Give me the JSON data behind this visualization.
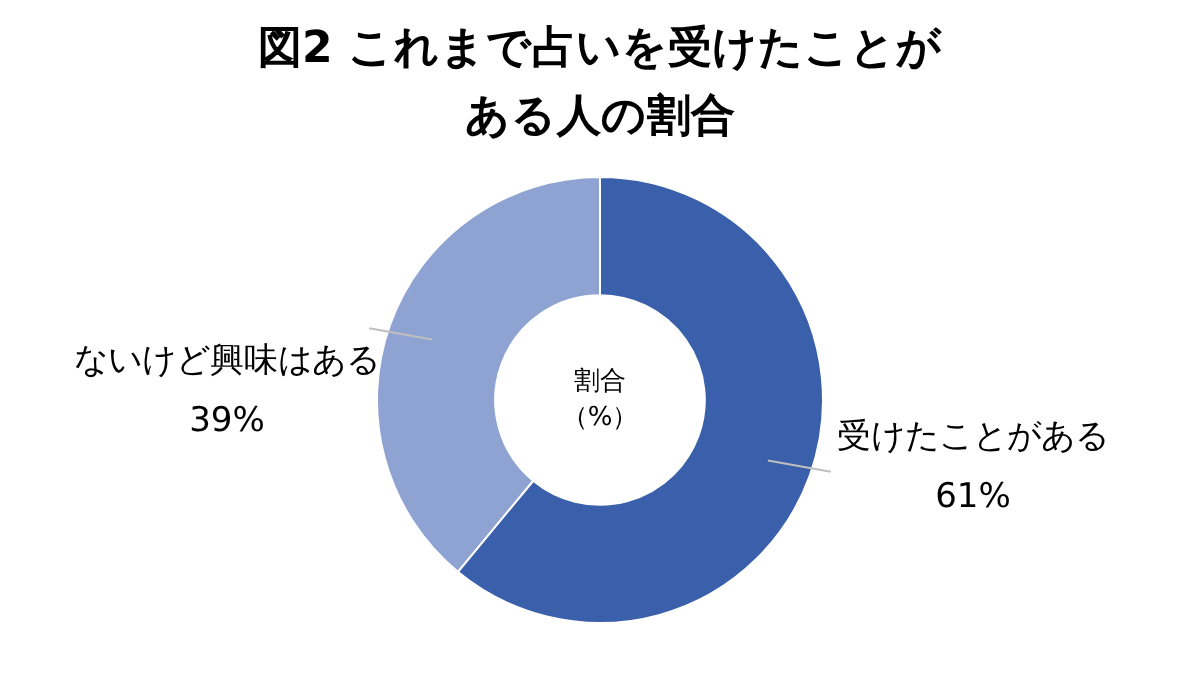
{
  "chart_data": {
    "type": "donut",
    "title": "図2 これまで占いを受けたことがある人の割合",
    "categories": [
      "受けたことがある",
      "ないけど興味はある"
    ],
    "values": [
      61,
      39
    ],
    "value_labels": [
      "61%",
      "39%"
    ],
    "colors": [
      "#3a60ab",
      "#8fa3d3"
    ],
    "annotations": [
      "割合",
      "（%）"
    ],
    "legend": false
  }
}
